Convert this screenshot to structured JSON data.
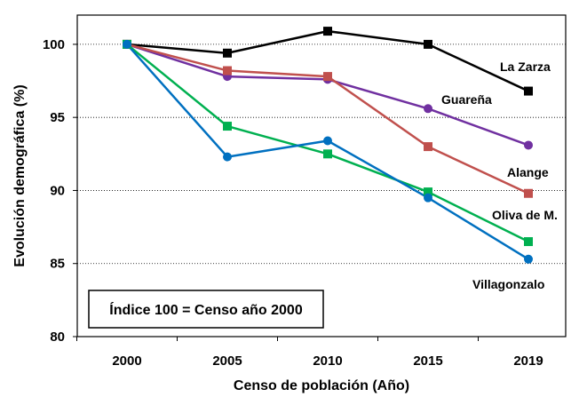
{
  "chart_data": {
    "type": "line",
    "xlabel": "Censo de población (Año)",
    "ylabel": "Evolución demográfica (%)",
    "categories": [
      "2000",
      "2005",
      "2010",
      "2015",
      "2019"
    ],
    "ylim": [
      80,
      102
    ],
    "yticks": [
      "80",
      "85",
      "90",
      "95",
      "100"
    ],
    "grid": "horizontal dotted",
    "annotation": "Índice 100 = Censo año 2000",
    "series": [
      {
        "name": "La Zarza",
        "color": "#000000",
        "marker": "square",
        "values": [
          100,
          99.4,
          100.9,
          100,
          96.8
        ]
      },
      {
        "name": "Guareña",
        "color": "#7030A0",
        "marker": "circle",
        "values": [
          100,
          97.8,
          97.6,
          95.6,
          93.1
        ]
      },
      {
        "name": "Alange",
        "color": "#C0504D",
        "marker": "square",
        "values": [
          100,
          98.2,
          97.8,
          93,
          89.8
        ]
      },
      {
        "name": "Oliva de M.",
        "color": "#00B050",
        "marker": "square",
        "values": [
          100,
          94.4,
          92.5,
          89.9,
          86.5
        ]
      },
      {
        "name": "Villagonzalo",
        "color": "#0070C0",
        "marker": "circle",
        "values": [
          100,
          92.3,
          93.4,
          89.5,
          85.3
        ]
      }
    ]
  }
}
